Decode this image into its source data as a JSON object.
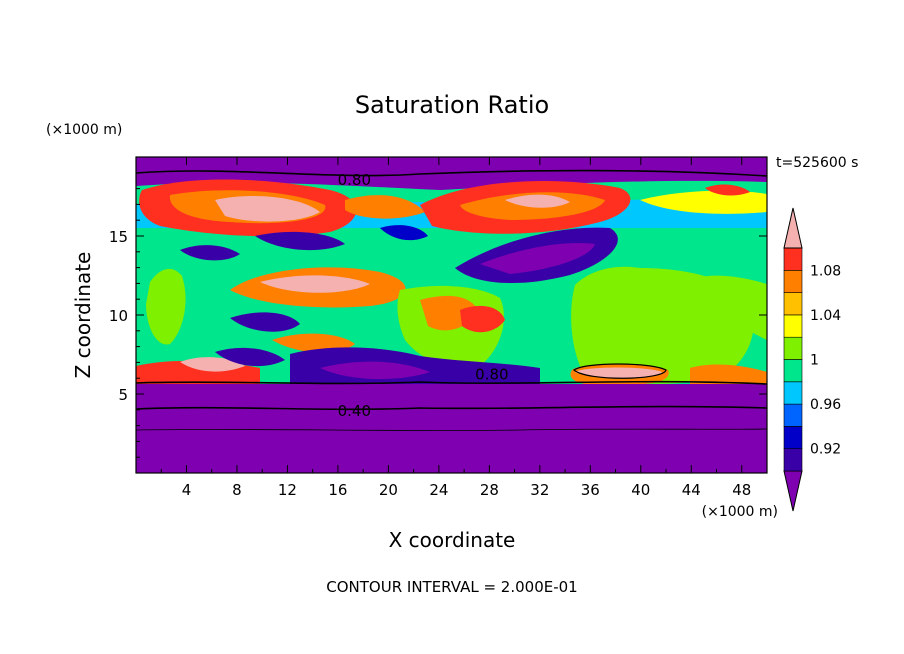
{
  "chart_data": {
    "type": "heatmap",
    "title": "Saturation Ratio",
    "xlabel": "X coordinate",
    "ylabel": "Z coordinate",
    "x_unit": "(×1000 m)",
    "y_unit": "(×1000 m)",
    "time_label": "t=525600 s",
    "footer": "CONTOUR INTERVAL = 2.000E-01",
    "xlim": [
      0,
      50
    ],
    "ylim": [
      0,
      20
    ],
    "x_ticks": [
      4,
      8,
      12,
      16,
      20,
      24,
      28,
      32,
      36,
      40,
      44,
      48
    ],
    "y_ticks": [
      5,
      10,
      15
    ],
    "colorbar": {
      "labels": [
        "0.92",
        "0.96",
        "1",
        "1.04",
        "1.08"
      ],
      "levels": [
        0.92,
        0.94,
        0.96,
        0.98,
        1.0,
        1.02,
        1.04,
        1.06,
        1.08,
        1.1
      ],
      "colors": [
        "#7f00b0",
        "#3a00a8",
        "#0000c8",
        "#0064ff",
        "#00c8ff",
        "#00e68c",
        "#7ef000",
        "#ffff00",
        "#ffc000",
        "#ff7f00",
        "#ff3020",
        "#f5b0b0"
      ]
    },
    "contour_labels": [
      {
        "text": "0.80",
        "x": 17.3,
        "y": 18.6
      },
      {
        "text": "0.80",
        "x": 28.2,
        "y": 6.3
      },
      {
        "text": "0.40",
        "x": 17.3,
        "y": 4.0
      }
    ]
  }
}
